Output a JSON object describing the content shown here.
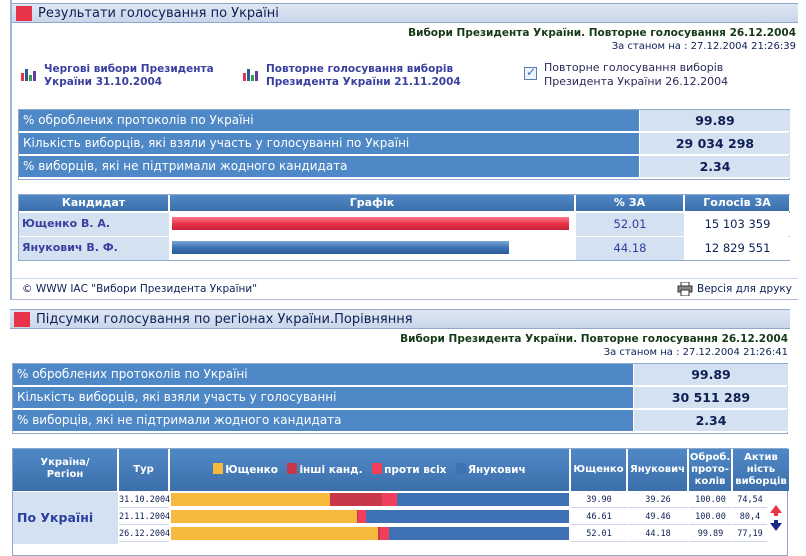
{
  "panel1": {
    "title": "Результати голосування по Україні",
    "election": "Вибори Президента України. Повторне голосування 26.12.2004",
    "as_of": "За станом на : 27.12.2004 21:26:39",
    "links": [
      {
        "line1": "Чергові вибори Президента",
        "line2": "України 31.10.2004"
      },
      {
        "line1": "Повторне голосування виборів",
        "line2": "Президента України 21.11.2004"
      }
    ],
    "current": {
      "line1": "Повторне голосування виборів",
      "line2": "Президента України 26.12.2004"
    },
    "stats": [
      {
        "label": "% оброблених протоколів по Україні",
        "value": "99.89"
      },
      {
        "label": "Кількість виборців, які взяли участь у голосуванні по Україні",
        "value": "29 034 298"
      },
      {
        "label": "% виборців, які не підтримали жодного кандидата",
        "value": "2.34"
      }
    ],
    "table_headers": {
      "candidate": "Кандидат",
      "chart": "Графік",
      "pct": "% ЗА",
      "votes": "Голосів ЗА"
    },
    "candidates": [
      {
        "name": "Ющенко В. А.",
        "pct": "52.01",
        "votes": "15 103 359",
        "share": 52.01,
        "color": "#e8344a"
      },
      {
        "name": "Янукович В. Ф.",
        "pct": "44.18",
        "votes": "12 829 551",
        "share": 44.18,
        "color": "#3e72b4"
      }
    ],
    "copyright": "© WWW ІАС \"Вибори Президента України\"",
    "print": "Версія для друку"
  },
  "panel2": {
    "title": "Підсумки голосування по регіонах України.Порівняння",
    "election": "Вибори Президента України. Повторне голосування 26.12.2004",
    "as_of": "За станом на : 27.12.2004 21:26:41",
    "stats": [
      {
        "label": "% оброблених протоколів по Україні",
        "value": "99.89"
      },
      {
        "label": "Кількість виборців, які взяли участь у голосуванні",
        "value": "30 511 289"
      },
      {
        "label": "% виборців, які не підтримали жодного кандидата",
        "value": "2.34"
      }
    ],
    "headers": {
      "region_l1": "Україна/",
      "region_l2": "Регіон",
      "tour": "Тур",
      "yush": "Ющенко",
      "yan": "Янукович",
      "proc_l1": "Оброб.",
      "proc_l2": "прото-",
      "proc_l3": "колів",
      "act_l1": "Актив",
      "act_l2": "ність",
      "act_l3": "виборців"
    },
    "legend": [
      "Ющенко",
      "інші канд.",
      "проти всіх",
      "Янукович"
    ],
    "colors": {
      "yush": "#f6b93b",
      "other": "#c8384a",
      "against": "#ef3f5a",
      "yan": "#3e72b4"
    },
    "region": "По Україні",
    "rows": [
      {
        "date": "31.10.2004",
        "yush": "39.90",
        "yan": "39.26",
        "proc": "100.00",
        "act": "74,54",
        "y": 39.9,
        "o": 13.0,
        "a": 4.0
      },
      {
        "date": "21.11.2004",
        "yush": "46.61",
        "yan": "49.46",
        "proc": "100.00",
        "act": "80,4",
        "y": 46.61,
        "o": 0.5,
        "a": 2.0
      },
      {
        "date": "26.12.2004",
        "yush": "52.01",
        "yan": "44.18",
        "proc": "99.89",
        "act": "77,19",
        "y": 52.01,
        "o": 0.5,
        "a": 2.34
      }
    ]
  }
}
